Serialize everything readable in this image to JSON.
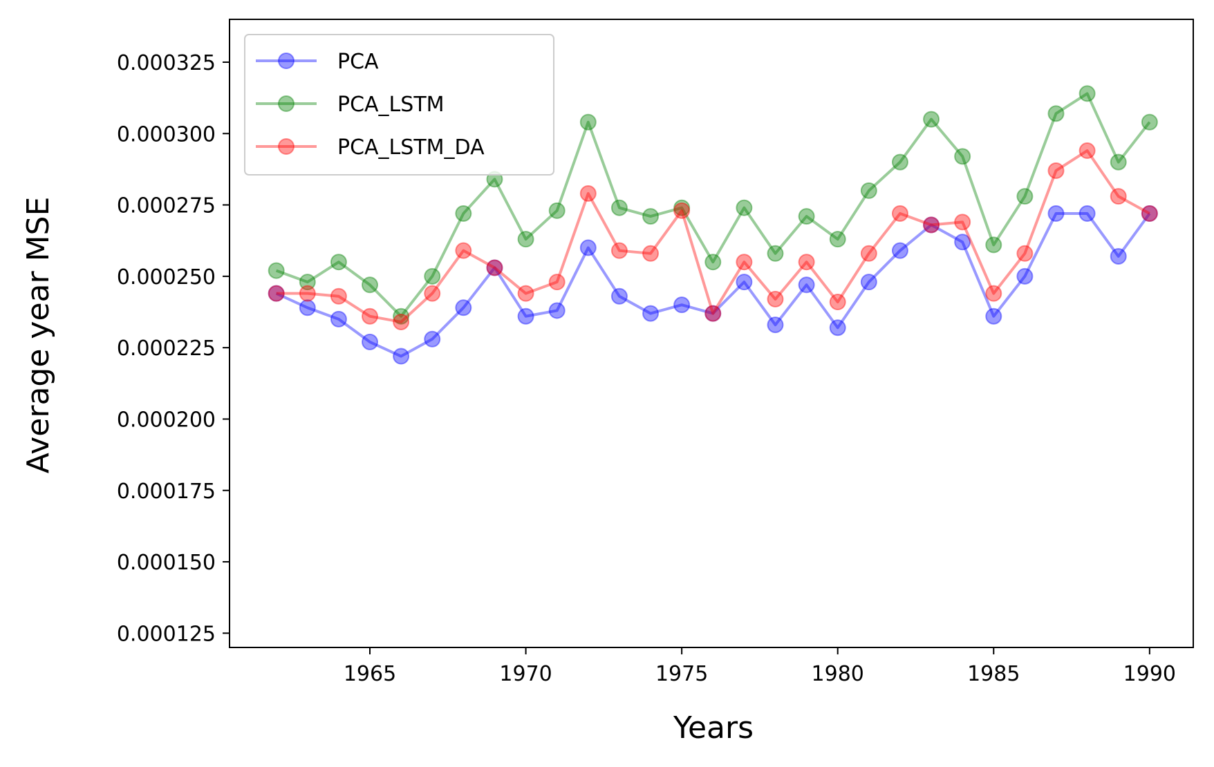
{
  "chart_data": {
    "type": "line",
    "title": "",
    "xlabel": "Years",
    "ylabel": "Average year MSE",
    "x": [
      1962,
      1963,
      1964,
      1965,
      1966,
      1967,
      1968,
      1969,
      1970,
      1971,
      1972,
      1973,
      1974,
      1975,
      1976,
      1977,
      1978,
      1979,
      1980,
      1981,
      1982,
      1983,
      1984,
      1985,
      1986,
      1987,
      1988,
      1989,
      1990
    ],
    "xlim": [
      1960.5,
      1991.4
    ],
    "ylim": [
      0.00012,
      0.00034
    ],
    "xticks": [
      1965,
      1970,
      1975,
      1980,
      1985,
      1990
    ],
    "xtick_labels": [
      "1965",
      "1970",
      "1975",
      "1980",
      "1985",
      "1990"
    ],
    "yticks": [
      0.000125,
      0.00015,
      0.000175,
      0.0002,
      0.000225,
      0.00025,
      0.000275,
      0.0003,
      0.000325
    ],
    "ytick_labels": [
      "0.000125",
      "0.000150",
      "0.000175",
      "0.000200",
      "0.000225",
      "0.000250",
      "0.000275",
      "0.000300",
      "0.000325"
    ],
    "grid": false,
    "legend_position": "top-left",
    "series": [
      {
        "name": "PCA",
        "color": "#0000ff",
        "values": [
          0.000244,
          0.000239,
          0.000235,
          0.000227,
          0.000222,
          0.000228,
          0.000239,
          0.000253,
          0.000236,
          0.000238,
          0.00026,
          0.000243,
          0.000237,
          0.00024,
          0.000237,
          0.000248,
          0.000233,
          0.000247,
          0.000232,
          0.000248,
          0.000259,
          0.000268,
          0.000262,
          0.000236,
          0.00025,
          0.000272,
          0.000272,
          0.000257,
          0.000272
        ]
      },
      {
        "name": "PCA_LSTM",
        "color": "#008000",
        "values": [
          0.000252,
          0.000248,
          0.000255,
          0.000247,
          0.000236,
          0.00025,
          0.000272,
          0.000284,
          0.000263,
          0.000273,
          0.000304,
          0.000274,
          0.000271,
          0.000274,
          0.000255,
          0.000274,
          0.000258,
          0.000271,
          0.000263,
          0.00028,
          0.00029,
          0.000305,
          0.000292,
          0.000261,
          0.000278,
          0.000307,
          0.000314,
          0.00029,
          0.000304
        ]
      },
      {
        "name": "PCA_LSTM_DA",
        "color": "#ff0000",
        "values": [
          0.000244,
          0.000244,
          0.000243,
          0.000236,
          0.000234,
          0.000244,
          0.000259,
          0.000253,
          0.000244,
          0.000248,
          0.000279,
          0.000259,
          0.000258,
          0.000273,
          0.000237,
          0.000255,
          0.000242,
          0.000255,
          0.000241,
          0.000258,
          0.000272,
          0.000268,
          0.000269,
          0.000244,
          0.000258,
          0.000287,
          0.000294,
          0.000278,
          0.000272
        ]
      }
    ]
  }
}
